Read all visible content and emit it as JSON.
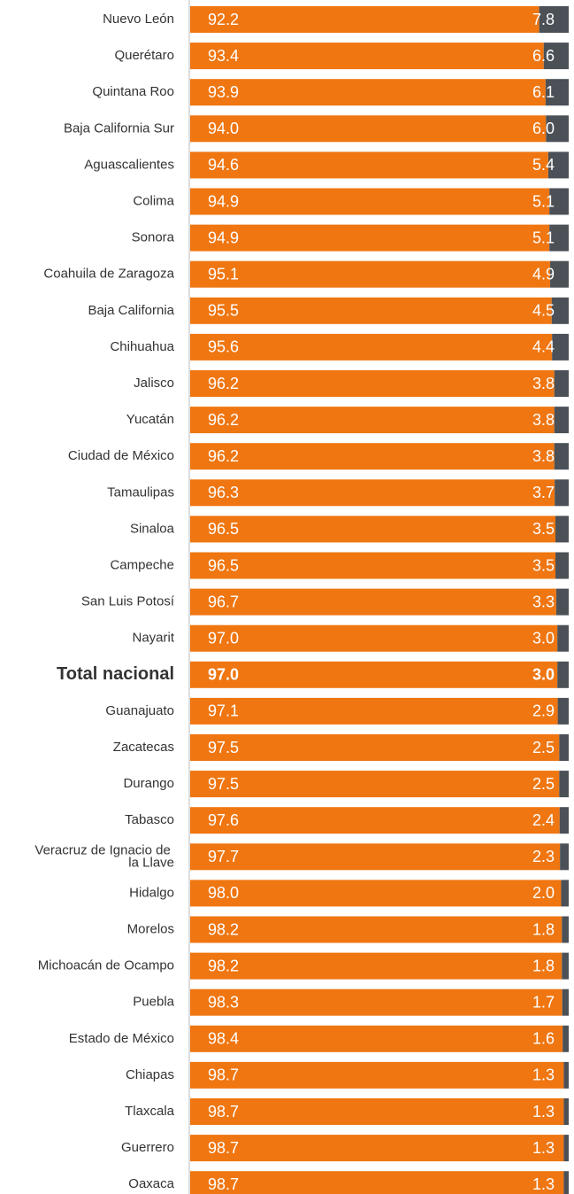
{
  "chart_data": {
    "type": "stacked_barh",
    "categories": [
      "Nuevo León",
      "Querétaro",
      "Quintana Roo",
      "Baja California Sur",
      "Aguascalientes",
      "Colima",
      "Sonora",
      "Coahuila de Zaragoza",
      "Baja California",
      "Chihuahua",
      "Jalisco",
      "Yucatán",
      "Ciudad de México",
      "Tamaulipas",
      "Sinaloa",
      "Campeche",
      "San Luis Potosí",
      "Nayarit",
      "Total nacional",
      "Guanajuato",
      "Zacatecas",
      "Durango",
      "Tabasco",
      "Veracruz de Ignacio de la Llave",
      "Hidalgo",
      "Morelos",
      "Michoacán de Ocampo",
      "Puebla",
      "Estado de México",
      "Chiapas",
      "Tlaxcala",
      "Guerrero",
      "Oaxaca"
    ],
    "series": [
      {
        "color": "#ef7611",
        "values": [
          92.2,
          93.4,
          93.9,
          94.0,
          94.6,
          94.9,
          94.9,
          95.1,
          95.5,
          95.6,
          96.2,
          96.2,
          96.2,
          96.3,
          96.5,
          96.5,
          96.7,
          97.0,
          97.0,
          97.1,
          97.5,
          97.5,
          97.6,
          97.7,
          98.0,
          98.2,
          98.2,
          98.3,
          98.4,
          98.7,
          98.7,
          98.7,
          98.7
        ],
        "value_labels": [
          "92.2",
          "93.4",
          "93.9",
          "94.0",
          "94.6",
          "94.9",
          "94.9",
          "95.1",
          "95.5",
          "95.6",
          "96.2",
          "96.2",
          "96.2",
          "96.3",
          "96.5",
          "96.5",
          "96.7",
          "97.0",
          "97.0",
          "97.1",
          "97.5",
          "97.5",
          "97.6",
          "97.7",
          "98.0",
          "98.2",
          "98.2",
          "98.3",
          "98.4",
          "98.7",
          "98.7",
          "98.7",
          "98.7"
        ]
      },
      {
        "color": "#4b5157",
        "values": [
          7.8,
          6.6,
          6.1,
          6.0,
          5.4,
          5.1,
          5.1,
          4.9,
          4.5,
          4.4,
          3.8,
          3.8,
          3.8,
          3.7,
          3.5,
          3.5,
          3.3,
          3.0,
          3.0,
          2.9,
          2.5,
          2.5,
          2.4,
          2.3,
          2.0,
          1.8,
          1.8,
          1.7,
          1.6,
          1.3,
          1.3,
          1.3,
          1.3
        ],
        "value_labels": [
          "7.8",
          "6.6",
          "6.1",
          "6.0",
          "5.4",
          "5.1",
          "5.1",
          "4.9",
          "4.5",
          "4.4",
          "3.8",
          "3.8",
          "3.8",
          "3.7",
          "3.5",
          "3.5",
          "3.3",
          "3.0",
          "3.0",
          "2.9",
          "2.5",
          "2.5",
          "2.4",
          "2.3",
          "2.0",
          "1.8",
          "1.8",
          "1.7",
          "1.6",
          "1.3",
          "1.3",
          "1.3",
          "1.3"
        ]
      }
    ],
    "xlim": [
      0,
      100
    ],
    "highlight_index": 18
  }
}
